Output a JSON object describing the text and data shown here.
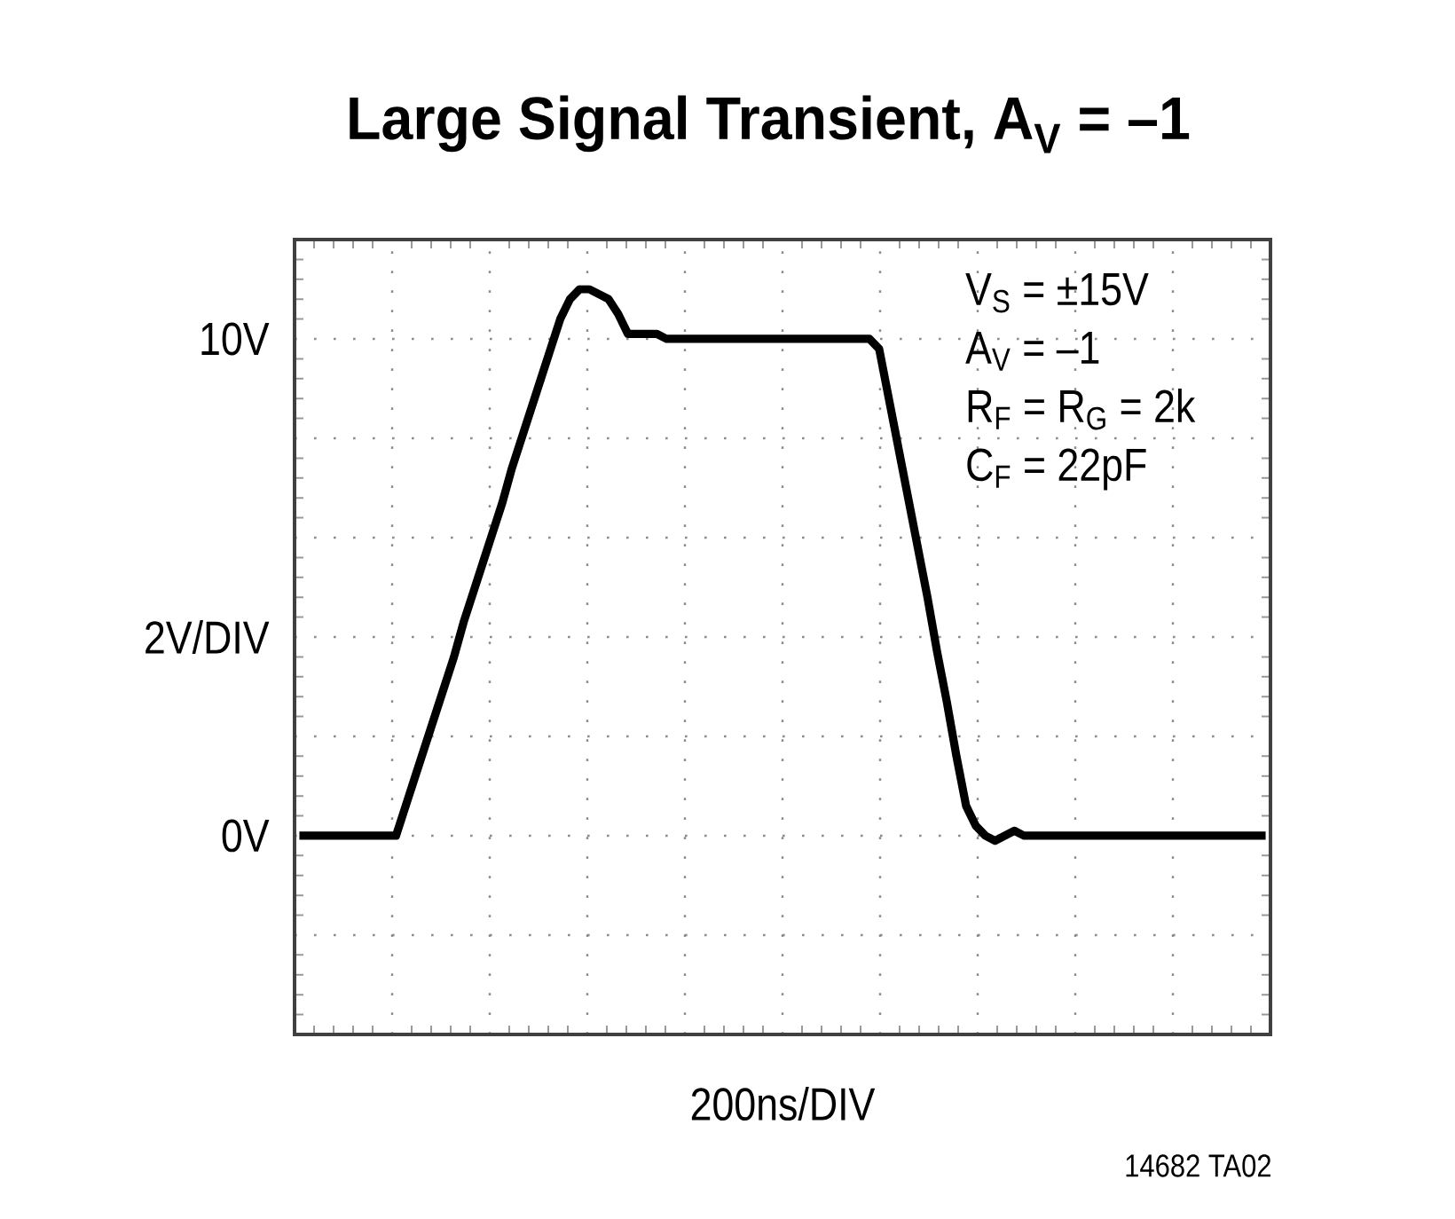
{
  "chart_data": {
    "type": "line",
    "title": "Large Signal Transient, A$_{V}$ = –1",
    "xlabel": "200ns/DIV",
    "ylabel": "2V/DIV",
    "categories": [
      null,
      null,
      null,
      null,
      null,
      null,
      null,
      null,
      null,
      null,
      null,
      null,
      null,
      null,
      null,
      null,
      null,
      null,
      null,
      null,
      null,
      null,
      null,
      null,
      null,
      null,
      null,
      null,
      null,
      null,
      null,
      null,
      null,
      null,
      null,
      null,
      null,
      null,
      null,
      null,
      null,
      null,
      null,
      null,
      null,
      null,
      null,
      null,
      null,
      null,
      null,
      null,
      null,
      null,
      null,
      null,
      null,
      null,
      null,
      null,
      null,
      null,
      null,
      null,
      null,
      null,
      null,
      null,
      null,
      null,
      null,
      null,
      null,
      null,
      null,
      null,
      null,
      null,
      null,
      null,
      null,
      null,
      null,
      null,
      null,
      null,
      null,
      null,
      null,
      null,
      null,
      null,
      null,
      null,
      null,
      null,
      null,
      null,
      null,
      null,
      null
    ],
    "series": [
      {
        "color": "#000000",
        "values": [
          0,
          0,
          0,
          0,
          0,
          0,
          0,
          0,
          0,
          0,
          0,
          0.6,
          1.2,
          1.8,
          2.4,
          3.0,
          3.6,
          4.3,
          4.9,
          5.5,
          6.1,
          6.7,
          7.4,
          8.0,
          8.6,
          9.2,
          9.8,
          10.4,
          10.8,
          11.0,
          11.0,
          10.9,
          10.8,
          10.5,
          10.1,
          10.1,
          10.1,
          10.1,
          10.0,
          10.0,
          10.0,
          10.0,
          10.0,
          10.0,
          10.0,
          10.0,
          10.0,
          10.0,
          10.0,
          10.0,
          10.0,
          10.0,
          10.0,
          10.0,
          10.0,
          10.0,
          10.0,
          10.0,
          10.0,
          10.0,
          9.8,
          8.8,
          7.8,
          6.8,
          5.8,
          4.8,
          3.7,
          2.7,
          1.6,
          0.6,
          0.2,
          0.0,
          -0.1,
          0.0,
          0.1,
          0.0,
          0,
          0,
          0,
          0,
          0,
          0,
          0,
          0,
          0,
          0,
          0,
          0,
          0,
          0,
          0,
          0,
          0,
          0,
          0,
          0,
          0,
          0,
          0,
          0,
          0
        ]
      }
    ],
    "ylim": [
      -4,
      12
    ],
    "yticks": [
      {
        "value": -4,
        "label": null
      },
      {
        "value": -2,
        "label": null
      },
      {
        "value": 0,
        "label": "0V"
      },
      {
        "value": 2,
        "label": null
      },
      {
        "value": 4,
        "label": null
      },
      {
        "value": 6,
        "label": null
      },
      {
        "value": 8,
        "label": null
      },
      {
        "value": 10,
        "label": "10V"
      },
      {
        "value": 12,
        "label": null
      }
    ],
    "grid": true,
    "tick_labels": "y",
    "annotations": [
      "V$_{S}$ = ±15V",
      "A$_{V}$ = –1",
      "R$_{F}$ = R$_{G}$ = 2k",
      "C$_{F}$ = 22pF",
      "14682 TA02"
    ]
  }
}
